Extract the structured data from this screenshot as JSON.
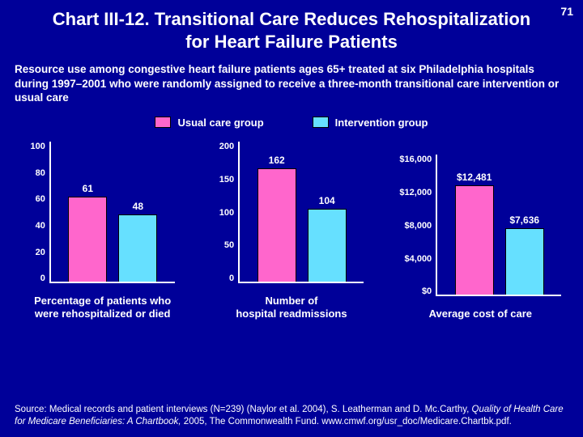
{
  "page_number": "71",
  "title": "Chart III-12. Transitional Care Reduces Rehospitalization for Heart Failure Patients",
  "subtitle": "Resource use among congestive heart failure patients ages 65+ treated at six Philadelphia hospitals during 1997–2001 who were randomly assigned to receive a three-month transitional care intervention or usual care",
  "legend": {
    "usual": {
      "label": "Usual care group",
      "color": "#ff66cc"
    },
    "intervention": {
      "label": "Intervention group",
      "color": "#66e0ff"
    }
  },
  "colors": {
    "background": "#000099",
    "axis": "#ffffff",
    "text": "#ffffff",
    "bar_border": "#000000"
  },
  "charts": [
    {
      "caption_line1": "Percentage of patients who",
      "caption_line2": "were rehospitalized or died",
      "ylim": [
        0,
        100
      ],
      "ytick_step": 20,
      "yticks": [
        "100",
        "80",
        "60",
        "40",
        "20",
        "0"
      ],
      "bars": [
        {
          "value": 61,
          "label": "61",
          "color": "#ff66cc",
          "height_pct": 61
        },
        {
          "value": 48,
          "label": "48",
          "color": "#66e0ff",
          "height_pct": 48
        }
      ]
    },
    {
      "caption_line1": "Number of",
      "caption_line2": "hospital readmissions",
      "ylim": [
        0,
        200
      ],
      "ytick_step": 50,
      "yticks": [
        "200",
        "150",
        "100",
        "50",
        "0"
      ],
      "bars": [
        {
          "value": 162,
          "label": "162",
          "color": "#ff66cc",
          "height_pct": 81
        },
        {
          "value": 104,
          "label": "104",
          "color": "#66e0ff",
          "height_pct": 52
        }
      ]
    },
    {
      "caption_line1": "Average cost of care",
      "caption_line2": "",
      "ylim": [
        0,
        16000
      ],
      "ytick_step": 4000,
      "yticks": [
        "$16,000",
        "$12,000",
        "$8,000",
        "$4,000",
        "$0"
      ],
      "bars": [
        {
          "value": 12481,
          "label": "$12,481",
          "color": "#ff66cc",
          "height_pct": 78
        },
        {
          "value": 7636,
          "label": "$7,636",
          "color": "#66e0ff",
          "height_pct": 47.7
        }
      ]
    }
  ],
  "source": {
    "pre": "Source: Medical records and patient interviews (N=239) (Naylor et al. 2004), S. Leatherman and D. Mc.Carthy, ",
    "ital": "Quality of Health Care for Medicare Beneficiaries: A Chartbook,",
    "post": " 2005, The Commonwealth Fund. www.cmwf.org/usr_doc/Medicare.Chartbk.pdf."
  }
}
